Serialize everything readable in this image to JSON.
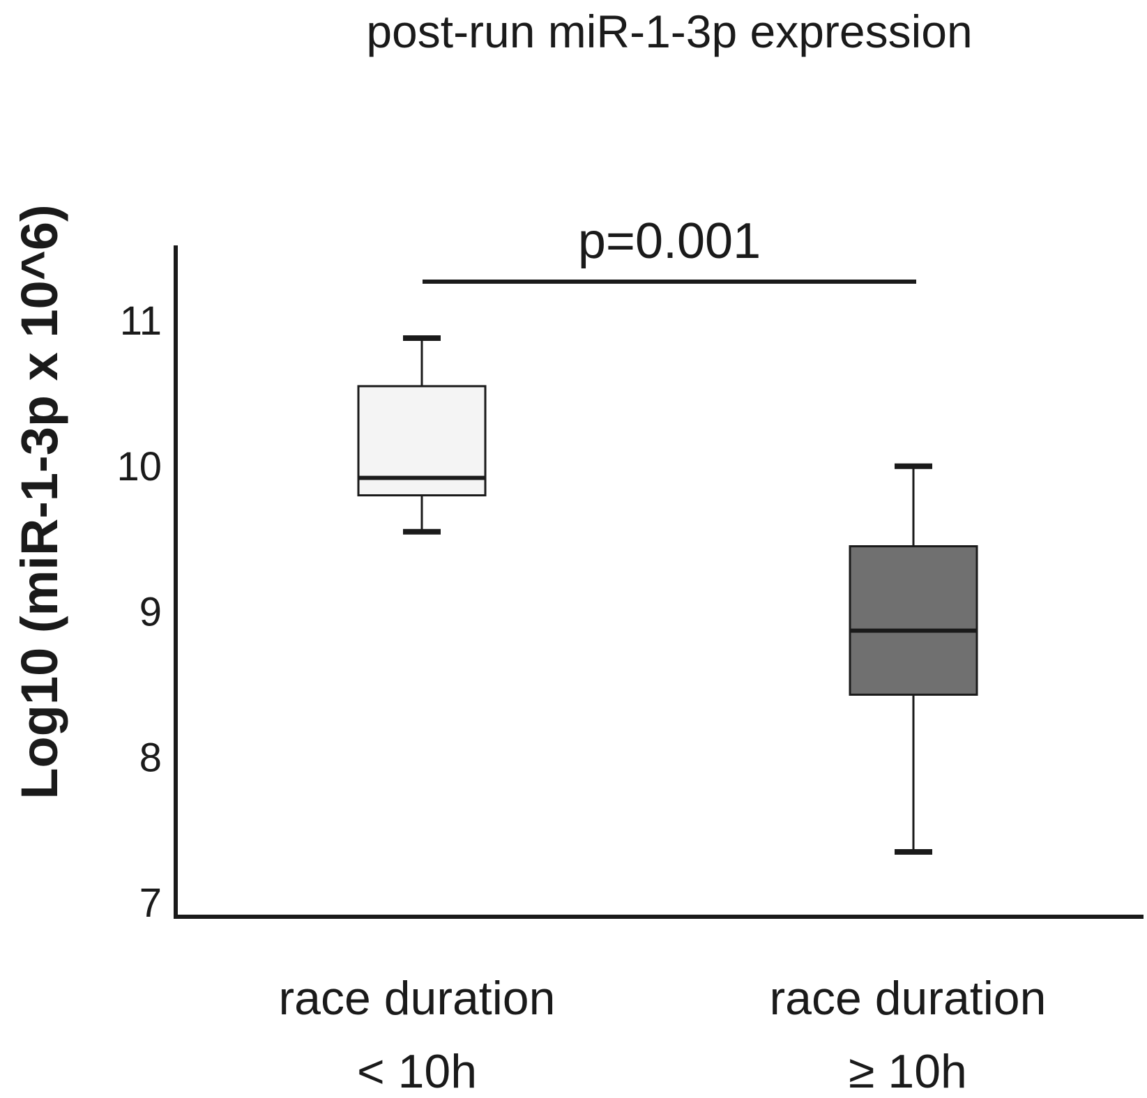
{
  "chart_data": {
    "type": "box",
    "title": "post-run miR-1-3p expression",
    "ylabel": "Log10 (miR-1-3p x 10^6)",
    "xlabel": "",
    "ylim": [
      7,
      11.5
    ],
    "yticks": [
      "7",
      "8",
      "9",
      "10",
      "11"
    ],
    "grid": false,
    "categories": [
      {
        "line1": "race duration",
        "line2": "< 10h"
      },
      {
        "line1": "race duration",
        "line2": "≥ 10h"
      }
    ],
    "boxes": [
      {
        "whisker_low": 9.55,
        "q1": 9.8,
        "median": 9.92,
        "q3": 10.55,
        "whisker_high": 10.88,
        "fill": "#f4f4f4"
      },
      {
        "whisker_low": 7.35,
        "q1": 8.43,
        "median": 8.87,
        "q3": 9.45,
        "whisker_high": 10.0,
        "fill": "#707070"
      }
    ],
    "annotation": {
      "text": "p=0.001",
      "from": 0,
      "to": 1
    }
  }
}
